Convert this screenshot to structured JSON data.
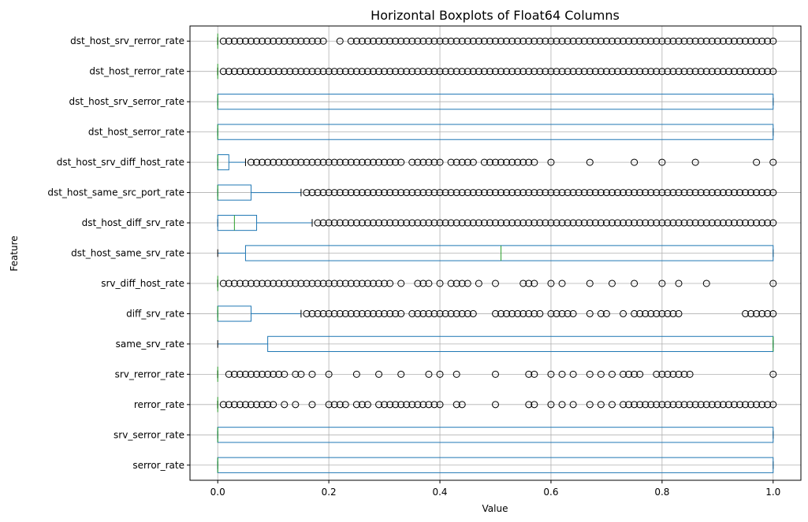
{
  "chart_data": {
    "type": "boxplot",
    "orientation": "horizontal",
    "title": "Horizontal Boxplots of Float64 Columns",
    "xlabel": "Value",
    "ylabel": "Feature",
    "xlim": [
      -0.05,
      1.05
    ],
    "xticks": [
      "0.0",
      "0.2",
      "0.4",
      "0.6",
      "0.8",
      "1.0"
    ],
    "xtick_values": [
      0.0,
      0.2,
      0.4,
      0.6,
      0.8,
      1.0
    ],
    "grid": true,
    "colors": {
      "box": "#1f77b4",
      "median": "#2ca02c",
      "outlier": "#000000",
      "grid": "#b0b0b0"
    },
    "features": [
      {
        "name": "serror_rate",
        "q1": 0.0,
        "median": 0.0,
        "q3": 1.0,
        "whisker_low": 0.0,
        "whisker_high": 1.0,
        "outliers": []
      },
      {
        "name": "srv_serror_rate",
        "q1": 0.0,
        "median": 0.0,
        "q3": 1.0,
        "whisker_low": 0.0,
        "whisker_high": 1.0,
        "outliers": []
      },
      {
        "name": "rerror_rate",
        "q1": 0.0,
        "median": 0.0,
        "q3": 0.0,
        "whisker_low": 0.0,
        "whisker_high": 0.0,
        "outliers": [
          0.01,
          0.02,
          0.03,
          0.04,
          0.05,
          0.06,
          0.07,
          0.08,
          0.09,
          0.1,
          0.12,
          0.14,
          0.17,
          0.2,
          0.21,
          0.22,
          0.23,
          0.25,
          0.26,
          0.27,
          0.29,
          0.3,
          0.31,
          0.32,
          0.33,
          0.34,
          0.35,
          0.36,
          0.37,
          0.38,
          0.39,
          0.4,
          0.43,
          0.44,
          0.5,
          0.56,
          0.57,
          0.6,
          0.62,
          0.64,
          0.67,
          0.69,
          0.71,
          0.73,
          0.74,
          0.75,
          0.76,
          0.77,
          0.78,
          0.79,
          0.8,
          0.81,
          0.82,
          0.83,
          0.84,
          0.85,
          0.86,
          0.87,
          0.88,
          0.89,
          0.9,
          0.91,
          0.92,
          0.93,
          0.94,
          0.95,
          0.96,
          0.97,
          0.98,
          0.99,
          1.0
        ]
      },
      {
        "name": "srv_rerror_rate",
        "q1": 0.0,
        "median": 0.0,
        "q3": 0.0,
        "whisker_low": 0.0,
        "whisker_high": 0.0,
        "outliers": [
          0.02,
          0.03,
          0.04,
          0.05,
          0.06,
          0.07,
          0.08,
          0.09,
          0.1,
          0.11,
          0.12,
          0.14,
          0.15,
          0.17,
          0.2,
          0.25,
          0.29,
          0.33,
          0.38,
          0.4,
          0.43,
          0.5,
          0.56,
          0.57,
          0.6,
          0.62,
          0.64,
          0.67,
          0.69,
          0.71,
          0.73,
          0.74,
          0.75,
          0.76,
          0.79,
          0.8,
          0.81,
          0.82,
          0.83,
          0.84,
          0.85,
          1.0
        ]
      },
      {
        "name": "same_srv_rate",
        "q1": 0.09,
        "median": 1.0,
        "q3": 1.0,
        "whisker_low": 0.0,
        "whisker_high": 1.0,
        "outliers": []
      },
      {
        "name": "diff_srv_rate",
        "q1": 0.0,
        "median": 0.0,
        "q3": 0.06,
        "whisker_low": 0.0,
        "whisker_high": 0.15,
        "outliers": [
          0.16,
          0.17,
          0.18,
          0.19,
          0.2,
          0.21,
          0.22,
          0.23,
          0.24,
          0.25,
          0.26,
          0.27,
          0.28,
          0.29,
          0.3,
          0.31,
          0.32,
          0.33,
          0.35,
          0.36,
          0.37,
          0.38,
          0.39,
          0.4,
          0.41,
          0.42,
          0.43,
          0.44,
          0.45,
          0.46,
          0.5,
          0.51,
          0.52,
          0.53,
          0.54,
          0.55,
          0.56,
          0.57,
          0.58,
          0.6,
          0.61,
          0.62,
          0.63,
          0.64,
          0.67,
          0.69,
          0.7,
          0.73,
          0.75,
          0.76,
          0.77,
          0.78,
          0.79,
          0.8,
          0.81,
          0.82,
          0.83,
          0.95,
          0.96,
          0.97,
          0.98,
          0.99,
          1.0
        ]
      },
      {
        "name": "srv_diff_host_rate",
        "q1": 0.0,
        "median": 0.0,
        "q3": 0.0,
        "whisker_low": 0.0,
        "whisker_high": 0.0,
        "outliers": [
          0.01,
          0.02,
          0.03,
          0.04,
          0.05,
          0.06,
          0.07,
          0.08,
          0.09,
          0.1,
          0.11,
          0.12,
          0.13,
          0.14,
          0.15,
          0.16,
          0.17,
          0.18,
          0.19,
          0.2,
          0.21,
          0.22,
          0.23,
          0.24,
          0.25,
          0.26,
          0.27,
          0.28,
          0.29,
          0.3,
          0.31,
          0.33,
          0.36,
          0.37,
          0.38,
          0.4,
          0.42,
          0.43,
          0.44,
          0.45,
          0.47,
          0.5,
          0.55,
          0.56,
          0.57,
          0.6,
          0.62,
          0.67,
          0.71,
          0.75,
          0.8,
          0.83,
          0.88,
          1.0
        ]
      },
      {
        "name": "dst_host_same_srv_rate",
        "q1": 0.05,
        "median": 0.51,
        "q3": 1.0,
        "whisker_low": 0.0,
        "whisker_high": 1.0,
        "outliers": []
      },
      {
        "name": "dst_host_diff_srv_rate",
        "q1": 0.0,
        "median": 0.03,
        "q3": 0.07,
        "whisker_low": 0.0,
        "whisker_high": 0.17,
        "outliers_from": 0.18,
        "outliers_to": 1.0,
        "outliers_step": 0.01
      },
      {
        "name": "dst_host_same_src_port_rate",
        "q1": 0.0,
        "median": 0.0,
        "q3": 0.06,
        "whisker_low": 0.0,
        "whisker_high": 0.15,
        "outliers_from": 0.16,
        "outliers_to": 1.0,
        "outliers_step": 0.01
      },
      {
        "name": "dst_host_srv_diff_host_rate",
        "q1": 0.0,
        "median": 0.0,
        "q3": 0.02,
        "whisker_low": 0.0,
        "whisker_high": 0.05,
        "outliers": [
          0.06,
          0.07,
          0.08,
          0.09,
          0.1,
          0.11,
          0.12,
          0.13,
          0.14,
          0.15,
          0.16,
          0.17,
          0.18,
          0.19,
          0.2,
          0.21,
          0.22,
          0.23,
          0.24,
          0.25,
          0.26,
          0.27,
          0.28,
          0.29,
          0.3,
          0.31,
          0.32,
          0.33,
          0.35,
          0.36,
          0.37,
          0.38,
          0.39,
          0.4,
          0.42,
          0.43,
          0.44,
          0.45,
          0.46,
          0.48,
          0.49,
          0.5,
          0.51,
          0.52,
          0.53,
          0.54,
          0.55,
          0.56,
          0.57,
          0.6,
          0.67,
          0.75,
          0.8,
          0.86,
          0.97,
          1.0
        ]
      },
      {
        "name": "dst_host_serror_rate",
        "q1": 0.0,
        "median": 0.0,
        "q3": 1.0,
        "whisker_low": 0.0,
        "whisker_high": 1.0,
        "outliers": []
      },
      {
        "name": "dst_host_srv_serror_rate",
        "q1": 0.0,
        "median": 0.0,
        "q3": 1.0,
        "whisker_low": 0.0,
        "whisker_high": 1.0,
        "outliers": []
      },
      {
        "name": "dst_host_rerror_rate",
        "q1": 0.0,
        "median": 0.0,
        "q3": 0.0,
        "whisker_low": 0.0,
        "whisker_high": 0.0,
        "outliers_from": 0.01,
        "outliers_to": 1.0,
        "outliers_step": 0.01
      },
      {
        "name": "dst_host_srv_rerror_rate",
        "q1": 0.0,
        "median": 0.0,
        "q3": 0.0,
        "whisker_low": 0.0,
        "whisker_high": 0.0,
        "outliers_from": 0.01,
        "outliers_to": 1.0,
        "outliers_step": 0.01,
        "outliers_skip": [
          0.2,
          0.21,
          0.23
        ]
      }
    ]
  }
}
